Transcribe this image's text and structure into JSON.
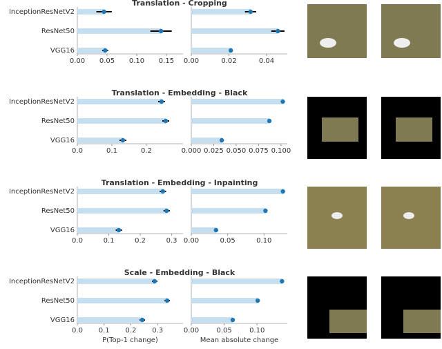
{
  "chart_data": [
    {
      "type": "hbar-dot",
      "title": "Translation - Cropping",
      "categories": [
        "InceptionResNetV2",
        "ResNet50",
        "VGG16"
      ],
      "values": [
        0.045,
        0.141,
        0.047
      ],
      "errors": [
        0.013,
        0.018,
        0.005
      ],
      "bar_color": "#c6dff0",
      "color": "#1f77b4",
      "xlim": [
        0,
        0.178
      ],
      "xticks": [
        {
          "value": 0,
          "label": "0.00"
        },
        0.05,
        {
          "value": 0.1,
          "label": "0.10"
        },
        0.15
      ]
    },
    {
      "type": "hbar-dot",
      "values": [
        0.0315,
        0.046,
        0.021
      ],
      "errors": [
        0.003,
        0.0035,
        0.001
      ],
      "bar_color": "#c6dff0",
      "color": "#1f77b4",
      "xlim": [
        0,
        0.051
      ],
      "xticks": [
        {
          "value": 0,
          "label": "0.00"
        },
        0.02,
        0.04
      ]
    },
    {
      "type": "hbar-dot",
      "title": "Translation - Embedding - Black",
      "categories": [
        "InceptionResNetV2",
        "ResNet50",
        "VGG16"
      ],
      "values": [
        0.244,
        0.256,
        0.132
      ],
      "errors": [
        0.01,
        0.01,
        0.01
      ],
      "bar_color": "#c6dff0",
      "color": "#1f77b4",
      "xlim": [
        0,
        0.306
      ],
      "xticks": [
        {
          "value": 0,
          "label": "0.0"
        },
        0.1,
        0.2
      ]
    },
    {
      "type": "hbar-dot",
      "values": [
        0.102,
        0.087,
        0.034
      ],
      "errors": [
        0.002,
        0.002,
        0.001
      ],
      "bar_color": "#c6dff0",
      "color": "#1f77b4",
      "xlim": [
        0,
        0.107
      ],
      "xticks": [
        {
          "value": 0,
          "label": "0.000"
        },
        0.025,
        {
          "value": 0.05,
          "label": "0.050"
        },
        0.075,
        {
          "value": 0.1,
          "label": "0.100"
        }
      ]
    },
    {
      "type": "hbar-dot",
      "title": "Translation - Embedding - Inpainting",
      "categories": [
        "InceptionResNetV2",
        "ResNet50",
        "VGG16"
      ],
      "values": [
        0.272,
        0.284,
        0.132
      ],
      "errors": [
        0.01,
        0.01,
        0.01
      ],
      "bar_color": "#c6dff0",
      "color": "#1f77b4",
      "xlim": [
        0,
        0.336
      ],
      "xticks": [
        {
          "value": 0,
          "label": "0.0"
        },
        0.1,
        0.2,
        0.3
      ]
    },
    {
      "type": "hbar-dot",
      "values": [
        0.126,
        0.102,
        0.034
      ],
      "errors": [
        0.002,
        0.002,
        0.001
      ],
      "bar_color": "#c6dff0",
      "color": "#1f77b4",
      "xlim": [
        0,
        0.132
      ],
      "xticks": [
        {
          "value": 0,
          "label": "0.00"
        },
        0.05,
        {
          "value": 0.1,
          "label": "0.10"
        }
      ]
    },
    {
      "type": "hbar-dot",
      "title": "Scale - Embedding - Black",
      "x_label": "P(Top-1 change)",
      "categories": [
        "InceptionResNetV2",
        "ResNet50",
        "VGG16"
      ],
      "values": [
        0.289,
        0.336,
        0.243
      ],
      "errors": [
        0.01,
        0.01,
        0.01
      ],
      "bar_color": "#c6dff0",
      "color": "#1f77b4",
      "xlim": [
        0,
        0.395
      ],
      "xticks": [
        {
          "value": 0,
          "label": "0.0"
        },
        0.1,
        0.2,
        0.3
      ]
    },
    {
      "type": "hbar-dot",
      "x_label": "Mean absolute change",
      "values": [
        0.138,
        0.101,
        0.063
      ],
      "errors": [
        0.003,
        0.002,
        0.002
      ],
      "bar_color": "#c6dff0",
      "color": "#1f77b4",
      "xlim": [
        0,
        0.146
      ],
      "xticks": [
        {
          "value": 0,
          "label": "0.00"
        },
        0.05,
        {
          "value": 0.1,
          "label": "0.10"
        }
      ]
    }
  ]
}
